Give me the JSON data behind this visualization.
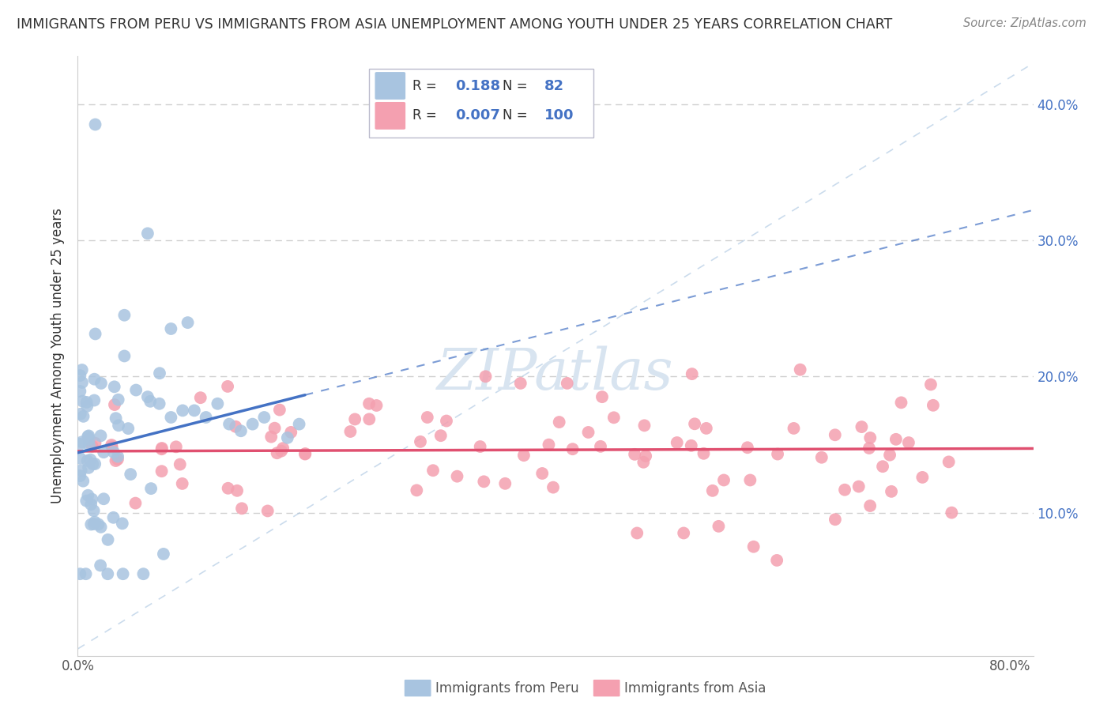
{
  "title": "IMMIGRANTS FROM PERU VS IMMIGRANTS FROM ASIA UNEMPLOYMENT AMONG YOUTH UNDER 25 YEARS CORRELATION CHART",
  "source": "Source: ZipAtlas.com",
  "ylabel": "Unemployment Among Youth under 25 years",
  "xlim": [
    0.0,
    0.82
  ],
  "ylim": [
    -0.005,
    0.435
  ],
  "ytick_vals": [
    0.1,
    0.2,
    0.3,
    0.4
  ],
  "ytick_labels": [
    "10.0%",
    "20.0%",
    "30.0%",
    "40.0%"
  ],
  "xtick_vals": [
    0.0,
    0.8
  ],
  "xtick_labels": [
    "0.0%",
    "80.0%"
  ],
  "peru_R": 0.188,
  "peru_N": 82,
  "asia_R": 0.007,
  "asia_N": 100,
  "peru_color": "#a8c4e0",
  "asia_color": "#f4a0b0",
  "peru_line_color": "#4472c4",
  "asia_line_color": "#e05070",
  "ref_line_color": "#a8c4e0",
  "watermark_color": "#d8e4f0",
  "background_color": "#ffffff",
  "grid_color": "#d0d0d0",
  "title_color": "#333333",
  "source_color": "#888888",
  "label_color": "#4472c4",
  "legend_text_color": "#333333",
  "bottom_label_color": "#555555"
}
